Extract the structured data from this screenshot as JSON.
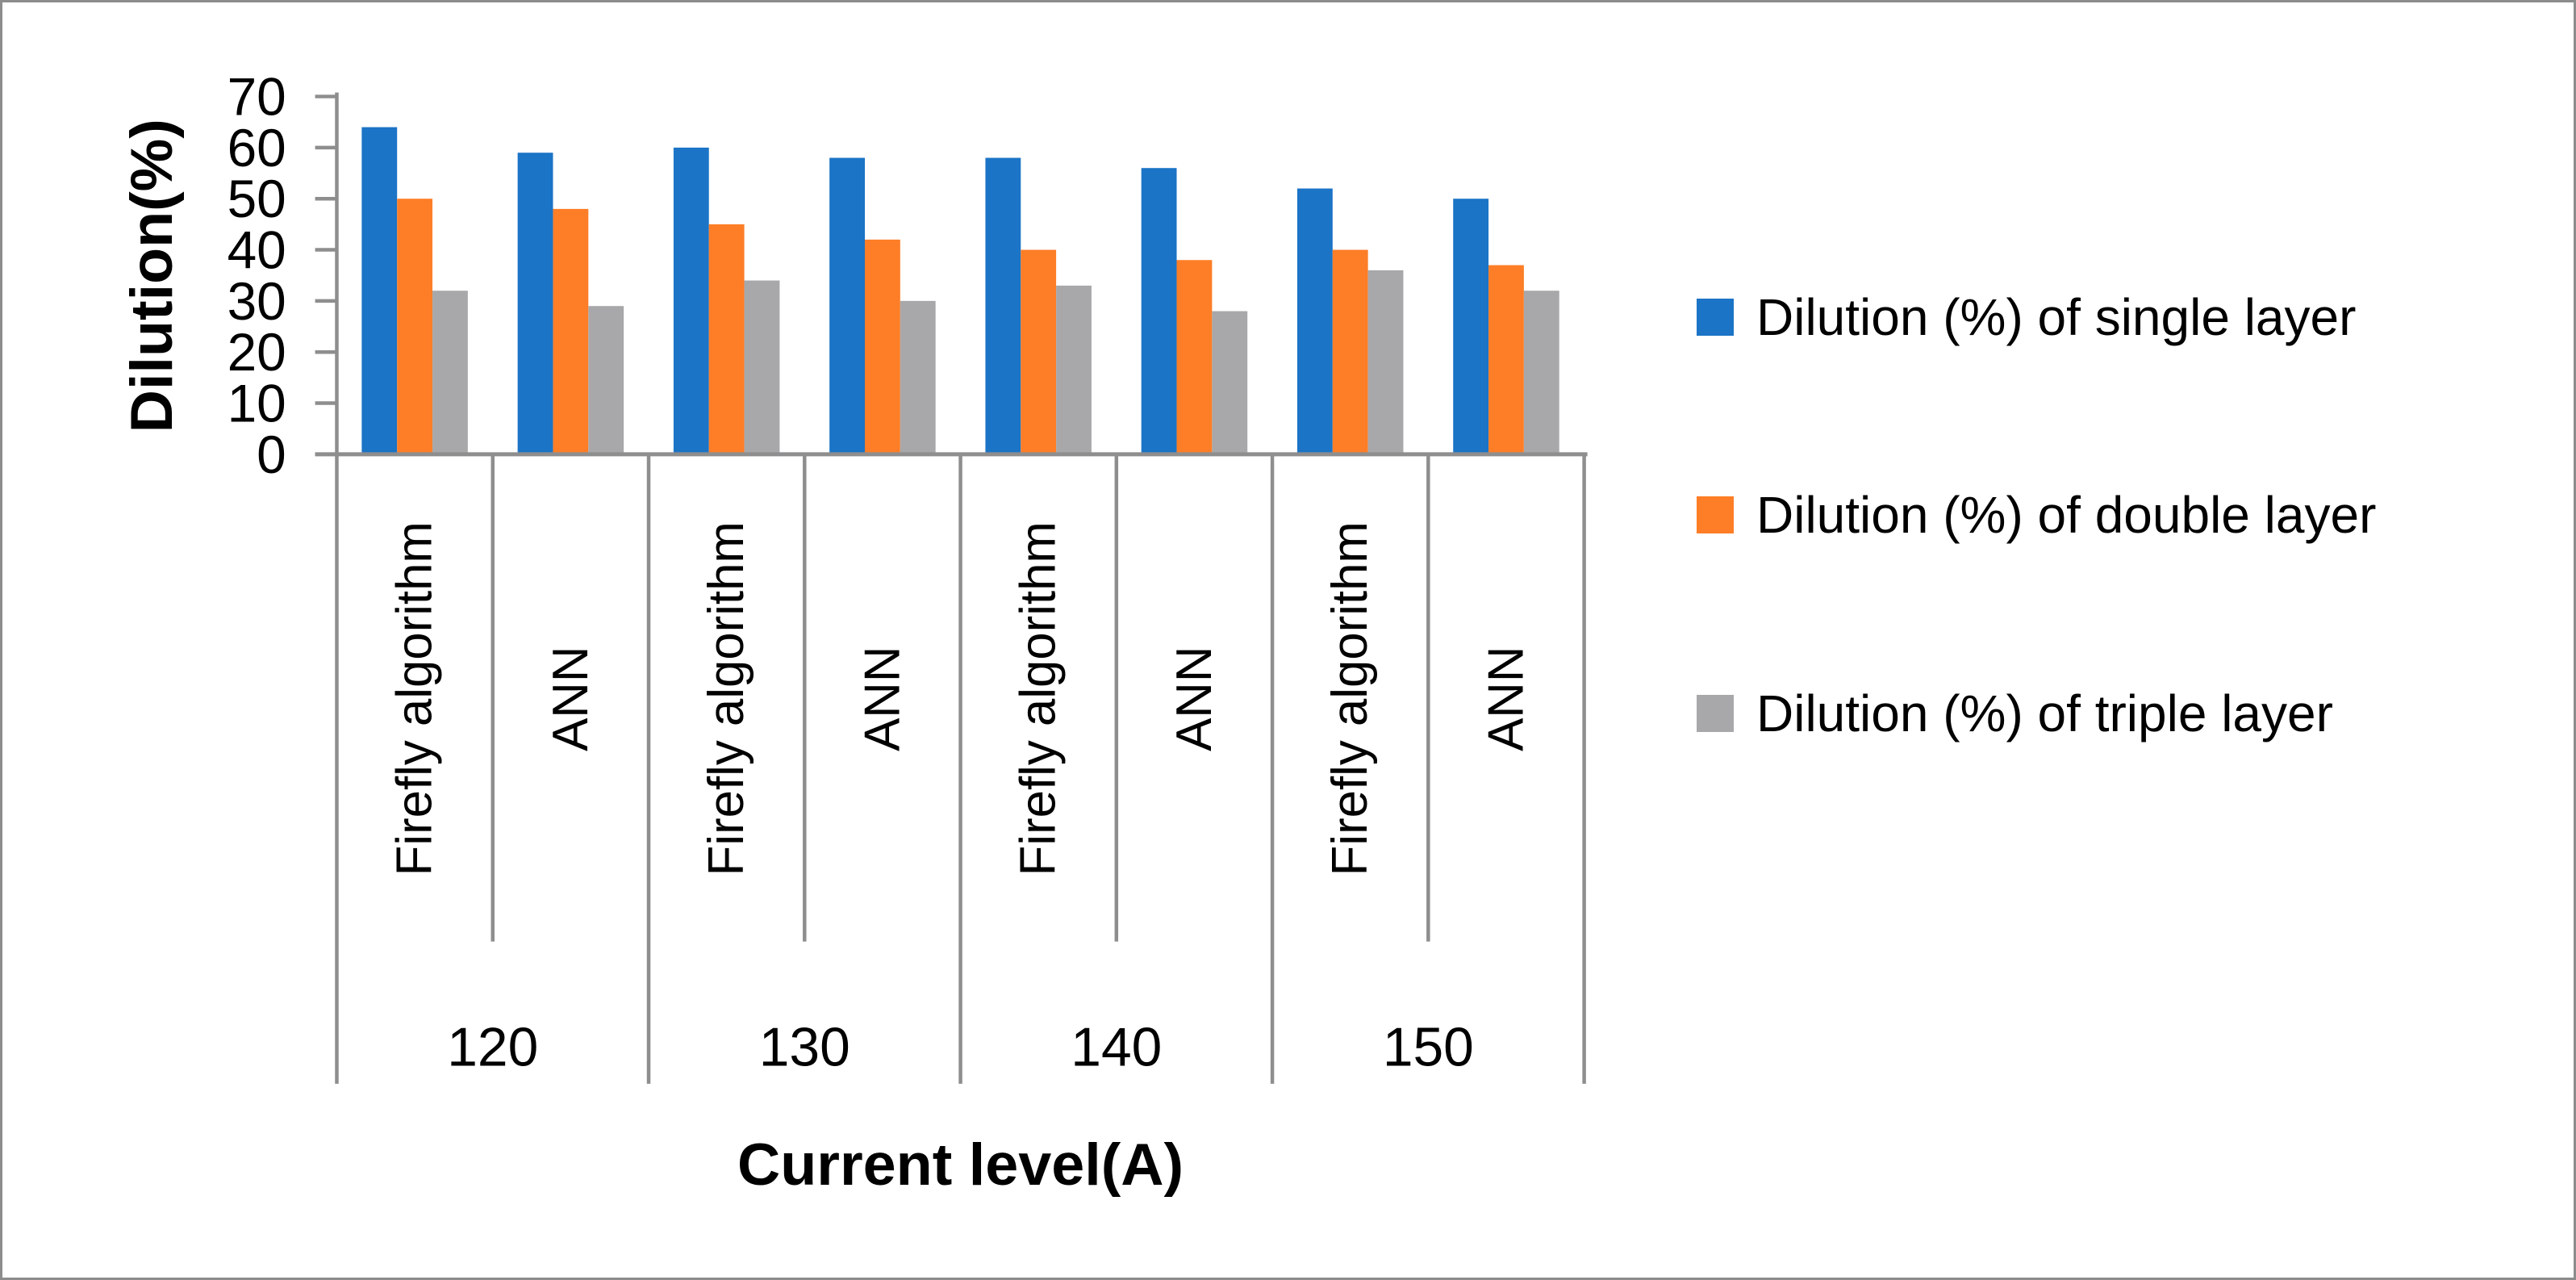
{
  "figure": {
    "background_color": "#FFFFFF",
    "border_color": "#8C8C8C"
  },
  "chart_data": {
    "type": "bar",
    "title": "",
    "ylabel": "Dilution(%)",
    "xlabel": "Current level(A)",
    "ylim": [
      0,
      70
    ],
    "yticks": [
      0,
      10,
      20,
      30,
      40,
      50,
      60,
      70
    ],
    "grid": false,
    "legend_position": "right",
    "axis_color": "#8E8E8E",
    "text_color": "#000000",
    "groups": [
      "120",
      "130",
      "140",
      "150"
    ],
    "subcategories": [
      "Firefly algorithm",
      "ANN"
    ],
    "cell_order_note": "values arrays run: 120-Firefly, 120-ANN, 130-Firefly, 130-ANN, 140-Firefly, 140-ANN, 150-Firefly, 150-ANN",
    "series": [
      {
        "name": "Dilution (%) of single layer",
        "color": "#1B74C6",
        "values": [
          64,
          59,
          60,
          58,
          58,
          56,
          52,
          50
        ]
      },
      {
        "name": "Dilution (%) of double layer",
        "color": "#FD7E27",
        "values": [
          50,
          48,
          45,
          42,
          40,
          38,
          40,
          37
        ]
      },
      {
        "name": "Dilution (%) of triple layer",
        "color": "#A8A8AA",
        "values": [
          32,
          29,
          34,
          30,
          33,
          28,
          36,
          32
        ]
      }
    ]
  }
}
